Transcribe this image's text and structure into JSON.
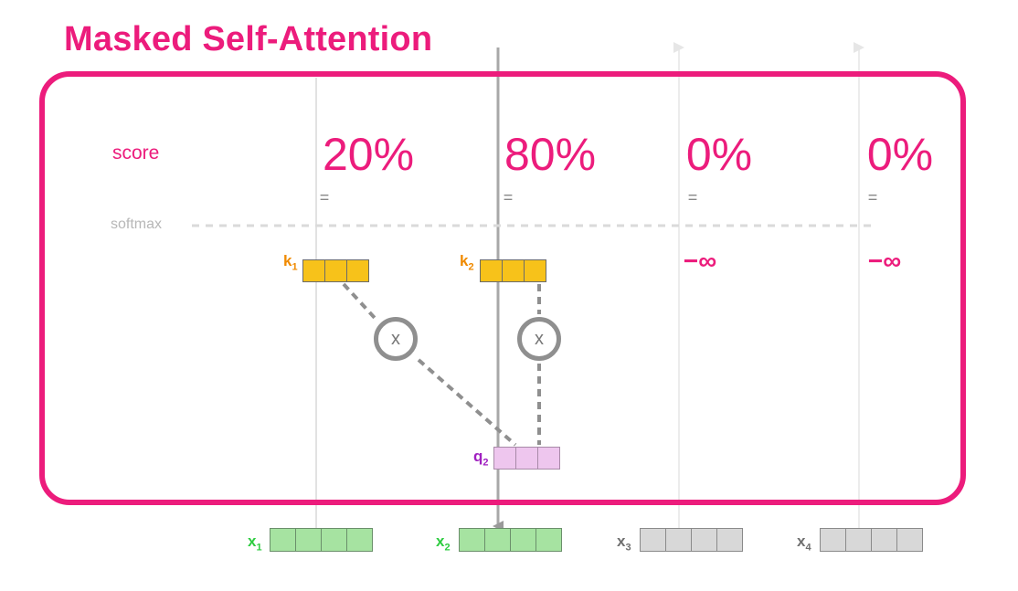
{
  "title": "Masked Self-Attention",
  "score_label": "score",
  "softmax_label": "softmax",
  "columns": [
    {
      "score": "20%",
      "equals": "=",
      "key": {
        "name": "k",
        "sub": "1"
      }
    },
    {
      "score": "80%",
      "equals": "=",
      "key": {
        "name": "k",
        "sub": "2"
      }
    },
    {
      "score": "0%",
      "equals": "=",
      "masked": "−∞"
    },
    {
      "score": "0%",
      "equals": "=",
      "masked": "−∞"
    }
  ],
  "multiply_symbol": "x",
  "query": {
    "name": "q",
    "sub": "2"
  },
  "inputs": [
    {
      "name": "x",
      "sub": "1",
      "state": "visible"
    },
    {
      "name": "x",
      "sub": "2",
      "state": "visible"
    },
    {
      "name": "x",
      "sub": "3",
      "state": "masked"
    },
    {
      "name": "x",
      "sub": "4",
      "state": "masked"
    }
  ],
  "colors": {
    "accent": "#ec1c7c",
    "key": "#f7c21a",
    "query": "#eec6ee",
    "input_visible": "#a6e3a1",
    "input_masked": "#d8d8d8"
  }
}
